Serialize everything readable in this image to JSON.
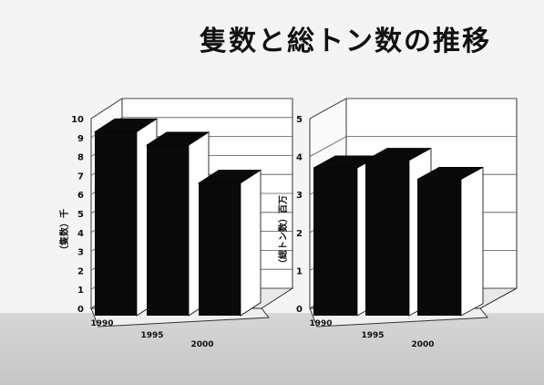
{
  "slide": {
    "title": "隻数と総トン数の推移"
  },
  "colors": {
    "bar_front": "#0a0a0a",
    "bar_side": "#ffffff",
    "wall": "#ffffff",
    "grid": "#555555",
    "floor": "#d0d0d0"
  },
  "chart_data": [
    {
      "type": "bar",
      "categories": [
        "1990",
        "1995",
        "2000"
      ],
      "values": [
        9.3,
        8.6,
        6.6
      ],
      "ylabel": "（隻数）千",
      "ylim": [
        0,
        10
      ],
      "yticks": [
        "0",
        "1",
        "2",
        "3",
        "4",
        "5",
        "6",
        "7",
        "8",
        "9",
        "10"
      ],
      "grid": true,
      "style": "3d"
    },
    {
      "type": "bar",
      "categories": [
        "1990",
        "1995",
        "2000"
      ],
      "values": [
        3.7,
        3.9,
        3.4
      ],
      "ylabel": "（総トン数）百万",
      "ylim": [
        0,
        5
      ],
      "yticks": [
        "0",
        "1",
        "2",
        "3",
        "4",
        "5"
      ],
      "grid": true,
      "style": "3d"
    }
  ]
}
